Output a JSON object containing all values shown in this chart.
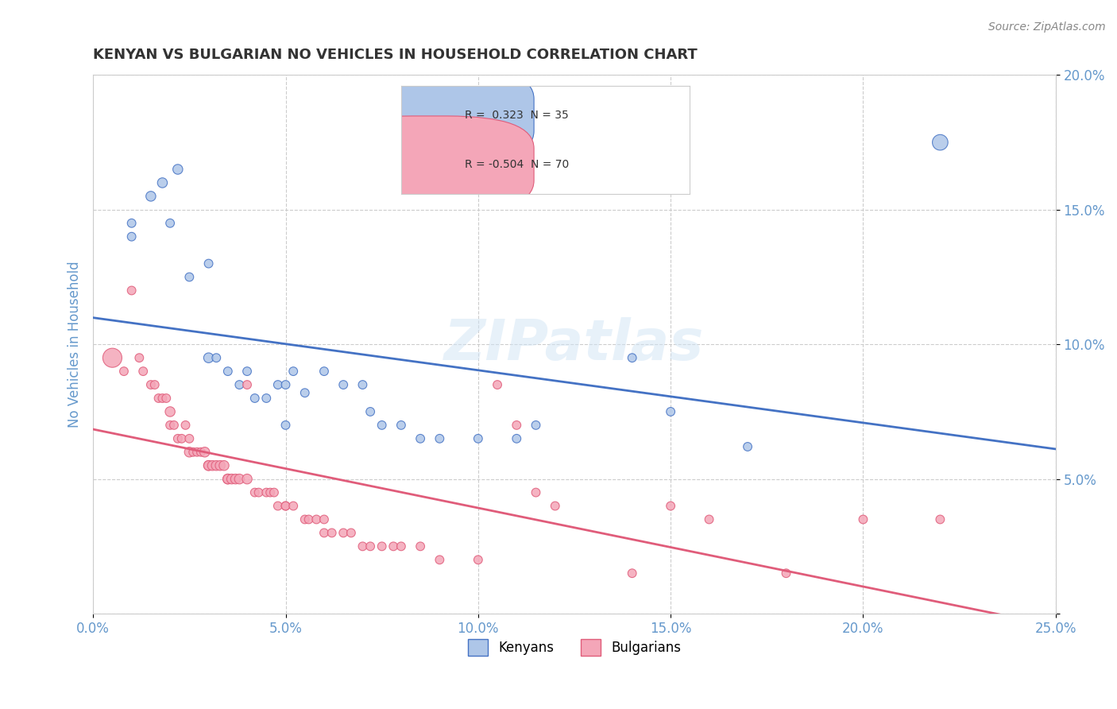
{
  "title": "KENYAN VS BULGARIAN NO VEHICLES IN HOUSEHOLD CORRELATION CHART",
  "source": "Source: ZipAtlas.com",
  "xlabel": "",
  "ylabel": "No Vehicles in Household",
  "xlim": [
    0.0,
    0.25
  ],
  "ylim": [
    0.0,
    0.2
  ],
  "xticks": [
    0.0,
    0.05,
    0.1,
    0.15,
    0.2,
    0.25
  ],
  "yticks": [
    0.0,
    0.05,
    0.1,
    0.15,
    0.2
  ],
  "xticklabels": [
    "0.0%",
    "5.0%",
    "10.0%",
    "15.0%",
    "20.0%",
    "25.0%"
  ],
  "yticklabels": [
    "",
    "5.0%",
    "10.0%",
    "15.0%",
    "20.0%"
  ],
  "kenyan_R": 0.323,
  "kenyan_N": 35,
  "bulgarian_R": -0.504,
  "bulgarian_N": 70,
  "kenyan_color": "#aec6e8",
  "bulgarian_color": "#f4a6b8",
  "kenyan_line_color": "#4472c4",
  "bulgarian_line_color": "#e05c7a",
  "kenyan_scatter": [
    [
      0.01,
      0.145
    ],
    [
      0.01,
      0.14
    ],
    [
      0.015,
      0.155
    ],
    [
      0.018,
      0.16
    ],
    [
      0.02,
      0.145
    ],
    [
      0.022,
      0.165
    ],
    [
      0.025,
      0.125
    ],
    [
      0.03,
      0.13
    ],
    [
      0.03,
      0.095
    ],
    [
      0.032,
      0.095
    ],
    [
      0.035,
      0.09
    ],
    [
      0.038,
      0.085
    ],
    [
      0.04,
      0.09
    ],
    [
      0.042,
      0.08
    ],
    [
      0.045,
      0.08
    ],
    [
      0.048,
      0.085
    ],
    [
      0.05,
      0.085
    ],
    [
      0.05,
      0.07
    ],
    [
      0.052,
      0.09
    ],
    [
      0.055,
      0.082
    ],
    [
      0.06,
      0.09
    ],
    [
      0.065,
      0.085
    ],
    [
      0.07,
      0.085
    ],
    [
      0.072,
      0.075
    ],
    [
      0.075,
      0.07
    ],
    [
      0.08,
      0.07
    ],
    [
      0.085,
      0.065
    ],
    [
      0.09,
      0.065
    ],
    [
      0.1,
      0.065
    ],
    [
      0.11,
      0.065
    ],
    [
      0.115,
      0.07
    ],
    [
      0.14,
      0.095
    ],
    [
      0.15,
      0.075
    ],
    [
      0.17,
      0.062
    ],
    [
      0.22,
      0.175
    ]
  ],
  "bulgarian_scatter": [
    [
      0.005,
      0.095
    ],
    [
      0.008,
      0.09
    ],
    [
      0.01,
      0.12
    ],
    [
      0.012,
      0.095
    ],
    [
      0.013,
      0.09
    ],
    [
      0.015,
      0.085
    ],
    [
      0.016,
      0.085
    ],
    [
      0.017,
      0.08
    ],
    [
      0.018,
      0.08
    ],
    [
      0.019,
      0.08
    ],
    [
      0.02,
      0.075
    ],
    [
      0.02,
      0.07
    ],
    [
      0.021,
      0.07
    ],
    [
      0.022,
      0.065
    ],
    [
      0.023,
      0.065
    ],
    [
      0.024,
      0.07
    ],
    [
      0.025,
      0.065
    ],
    [
      0.025,
      0.06
    ],
    [
      0.026,
      0.06
    ],
    [
      0.027,
      0.06
    ],
    [
      0.028,
      0.06
    ],
    [
      0.029,
      0.06
    ],
    [
      0.03,
      0.055
    ],
    [
      0.03,
      0.055
    ],
    [
      0.031,
      0.055
    ],
    [
      0.032,
      0.055
    ],
    [
      0.033,
      0.055
    ],
    [
      0.034,
      0.055
    ],
    [
      0.035,
      0.05
    ],
    [
      0.035,
      0.05
    ],
    [
      0.036,
      0.05
    ],
    [
      0.037,
      0.05
    ],
    [
      0.038,
      0.05
    ],
    [
      0.04,
      0.085
    ],
    [
      0.04,
      0.05
    ],
    [
      0.042,
      0.045
    ],
    [
      0.043,
      0.045
    ],
    [
      0.045,
      0.045
    ],
    [
      0.046,
      0.045
    ],
    [
      0.047,
      0.045
    ],
    [
      0.048,
      0.04
    ],
    [
      0.05,
      0.04
    ],
    [
      0.05,
      0.04
    ],
    [
      0.052,
      0.04
    ],
    [
      0.055,
      0.035
    ],
    [
      0.056,
      0.035
    ],
    [
      0.058,
      0.035
    ],
    [
      0.06,
      0.035
    ],
    [
      0.06,
      0.03
    ],
    [
      0.062,
      0.03
    ],
    [
      0.065,
      0.03
    ],
    [
      0.067,
      0.03
    ],
    [
      0.07,
      0.025
    ],
    [
      0.072,
      0.025
    ],
    [
      0.075,
      0.025
    ],
    [
      0.078,
      0.025
    ],
    [
      0.08,
      0.025
    ],
    [
      0.085,
      0.025
    ],
    [
      0.09,
      0.02
    ],
    [
      0.1,
      0.02
    ],
    [
      0.105,
      0.085
    ],
    [
      0.11,
      0.07
    ],
    [
      0.115,
      0.045
    ],
    [
      0.12,
      0.04
    ],
    [
      0.14,
      0.015
    ],
    [
      0.15,
      0.04
    ],
    [
      0.16,
      0.035
    ],
    [
      0.18,
      0.015
    ],
    [
      0.2,
      0.035
    ],
    [
      0.22,
      0.035
    ]
  ],
  "kenyan_bubble_sizes": [
    60,
    60,
    80,
    80,
    60,
    80,
    60,
    60,
    80,
    60,
    60,
    60,
    60,
    60,
    60,
    60,
    60,
    60,
    60,
    60,
    60,
    60,
    60,
    60,
    60,
    60,
    60,
    60,
    60,
    60,
    60,
    60,
    60,
    60,
    200
  ],
  "bulgarian_bubble_sizes": [
    300,
    60,
    60,
    60,
    60,
    60,
    60,
    60,
    60,
    60,
    80,
    60,
    60,
    60,
    60,
    60,
    60,
    80,
    60,
    60,
    60,
    80,
    80,
    80,
    80,
    80,
    80,
    80,
    80,
    80,
    80,
    80,
    80,
    60,
    80,
    60,
    60,
    60,
    60,
    60,
    60,
    60,
    60,
    60,
    60,
    60,
    60,
    60,
    60,
    60,
    60,
    60,
    60,
    60,
    60,
    60,
    60,
    60,
    60,
    60,
    60,
    60,
    60,
    60,
    60,
    60,
    60,
    60,
    60,
    60
  ],
  "watermark": "ZIPatlas",
  "background_color": "#ffffff",
  "grid_color": "#cccccc",
  "title_color": "#333333",
  "axis_label_color": "#6699cc",
  "tick_label_color": "#6699cc"
}
